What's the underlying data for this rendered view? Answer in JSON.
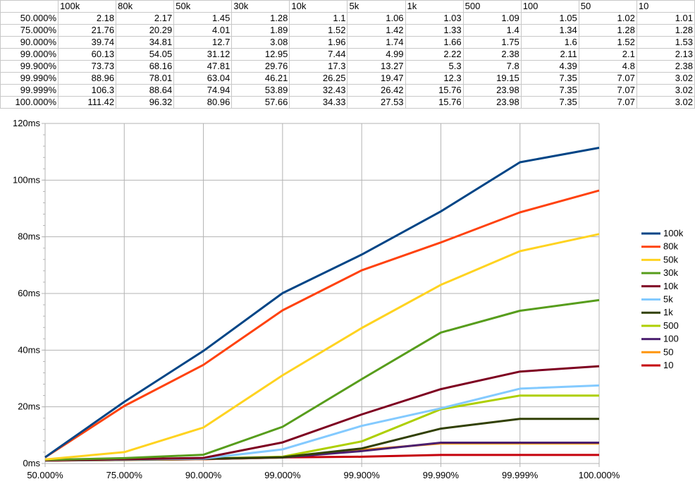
{
  "sheet": {
    "columns": [
      "100k",
      "80k",
      "50k",
      "30k",
      "10k",
      "5k",
      "1k",
      "500",
      "100",
      "50",
      "10"
    ],
    "rows": [
      {
        "label": "50.000%",
        "values": [
          "2.18",
          "2.17",
          "1.45",
          "1.28",
          "1.1",
          "1.06",
          "1.03",
          "1.09",
          "1.05",
          "1.02",
          "1.01"
        ]
      },
      {
        "label": "75.000%",
        "values": [
          "21.76",
          "20.29",
          "4.01",
          "1.89",
          "1.52",
          "1.42",
          "1.33",
          "1.4",
          "1.34",
          "1.28",
          "1.28"
        ]
      },
      {
        "label": "90.000%",
        "values": [
          "39.74",
          "34.81",
          "12.7",
          "3.08",
          "1.96",
          "1.74",
          "1.66",
          "1.75",
          "1.6",
          "1.52",
          "1.53"
        ]
      },
      {
        "label": "99.000%",
        "values": [
          "60.13",
          "54.05",
          "31.12",
          "12.95",
          "7.44",
          "4.99",
          "2.22",
          "2.38",
          "2.11",
          "2.1",
          "2.13"
        ]
      },
      {
        "label": "99.900%",
        "values": [
          "73.73",
          "68.16",
          "47.81",
          "29.76",
          "17.3",
          "13.27",
          "5.3",
          "7.8",
          "4.39",
          "4.8",
          "2.38"
        ]
      },
      {
        "label": "99.990%",
        "values": [
          "88.96",
          "78.01",
          "63.04",
          "46.21",
          "26.25",
          "19.47",
          "12.3",
          "19.15",
          "7.35",
          "7.07",
          "3.02"
        ]
      },
      {
        "label": "99.999%",
        "values": [
          "106.3",
          "88.64",
          "74.94",
          "53.89",
          "32.43",
          "26.42",
          "15.76",
          "23.98",
          "7.35",
          "7.07",
          "3.02"
        ]
      },
      {
        "label": "100.000%",
        "values": [
          "111.42",
          "96.32",
          "80.96",
          "57.66",
          "34.33",
          "27.53",
          "15.76",
          "23.98",
          "7.35",
          "7.07",
          "3.02"
        ]
      }
    ]
  },
  "chart_data": {
    "type": "line",
    "x": [
      "50.000%",
      "75.000%",
      "90.000%",
      "99.000%",
      "99.900%",
      "99.990%",
      "99.999%",
      "100.000%"
    ],
    "yticks": [
      "0ms",
      "20ms",
      "40ms",
      "60ms",
      "80ms",
      "100ms",
      "120ms"
    ],
    "ylim": [
      0,
      120
    ],
    "grid": true,
    "legend_position": "right",
    "series": [
      {
        "name": "100k",
        "color": "#004586",
        "values": [
          2.18,
          21.76,
          39.74,
          60.13,
          73.73,
          88.96,
          106.3,
          111.42
        ]
      },
      {
        "name": "80k",
        "color": "#ff420e",
        "values": [
          2.17,
          20.29,
          34.81,
          54.05,
          68.16,
          78.01,
          88.64,
          96.32
        ]
      },
      {
        "name": "50k",
        "color": "#ffd320",
        "values": [
          1.45,
          4.01,
          12.7,
          31.12,
          47.81,
          63.04,
          74.94,
          80.96
        ]
      },
      {
        "name": "30k",
        "color": "#579d1c",
        "values": [
          1.28,
          1.89,
          3.08,
          12.95,
          29.76,
          46.21,
          53.89,
          57.66
        ]
      },
      {
        "name": "10k",
        "color": "#7e0021",
        "values": [
          1.1,
          1.52,
          1.96,
          7.44,
          17.3,
          26.25,
          32.43,
          34.33
        ]
      },
      {
        "name": "5k",
        "color": "#83caff",
        "values": [
          1.06,
          1.42,
          1.74,
          4.99,
          13.27,
          19.47,
          26.42,
          27.53
        ]
      },
      {
        "name": "1k",
        "color": "#314004",
        "values": [
          1.03,
          1.33,
          1.66,
          2.22,
          5.3,
          12.3,
          15.76,
          15.76
        ]
      },
      {
        "name": "500",
        "color": "#aecf00",
        "values": [
          1.09,
          1.4,
          1.75,
          2.38,
          7.8,
          19.15,
          23.98,
          23.98
        ]
      },
      {
        "name": "100",
        "color": "#4b1f6f",
        "values": [
          1.05,
          1.34,
          1.6,
          2.11,
          4.39,
          7.35,
          7.35,
          7.35
        ]
      },
      {
        "name": "50",
        "color": "#ff950e",
        "values": [
          1.02,
          1.28,
          1.52,
          2.1,
          4.8,
          7.07,
          7.07,
          7.07
        ]
      },
      {
        "name": "10",
        "color": "#c5000b",
        "values": [
          1.01,
          1.28,
          1.53,
          2.13,
          2.38,
          3.02,
          3.02,
          3.02
        ]
      }
    ]
  }
}
